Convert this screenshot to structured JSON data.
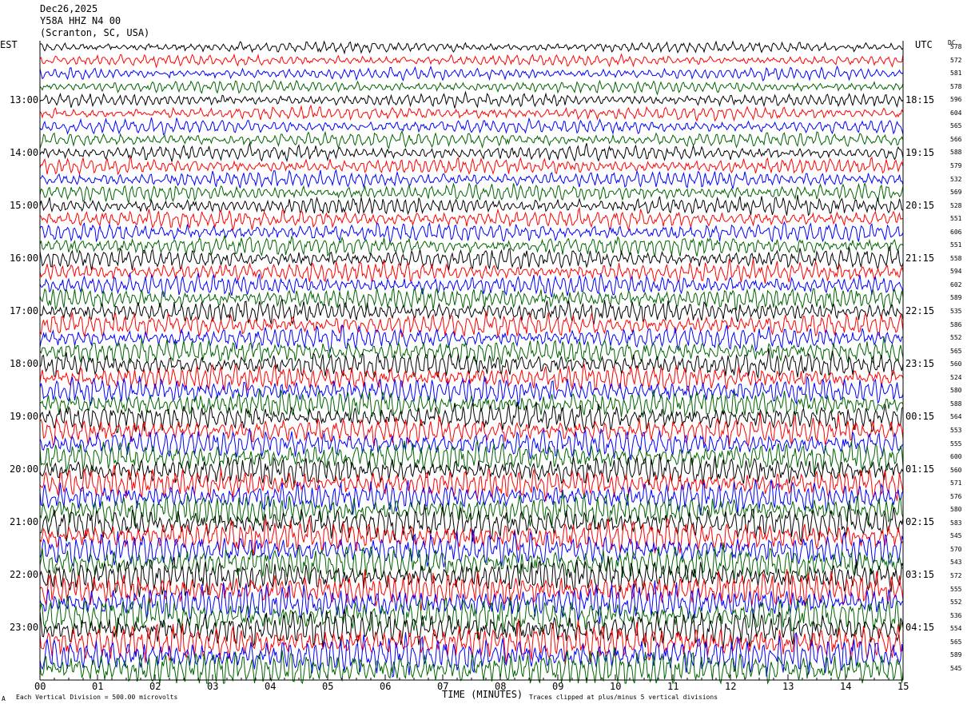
{
  "header": {
    "date": "Dec26,2025",
    "station": "Y58A HHZ N4 00",
    "location": "(Scranton, SC, USA)"
  },
  "axis_labels": {
    "left_tz": "EST",
    "right_tz": "UTC",
    "dc_label": "DC",
    "x_title": "TIME (MINUTES)"
  },
  "footer": {
    "scale_note": "Each Vertical Division =  500.00 microvolts",
    "clip_note": "Traces clipped at plus/minus 5 vertical divisions",
    "corner_mark": "A"
  },
  "trace_colors": [
    "#000000",
    "#ff0000",
    "#0000ff",
    "#006400"
  ],
  "chart_data": {
    "type": "line",
    "title": "Dec26,2025 Y58A HHZ N4 00 (Scranton, SC, USA)",
    "xlabel": "TIME (MINUTES)",
    "xlim": [
      0,
      15
    ],
    "x_ticks": [
      "00",
      "01",
      "02",
      "03",
      "04",
      "05",
      "06",
      "07",
      "08",
      "09",
      "10",
      "11",
      "12",
      "13",
      "14",
      "15"
    ],
    "left_hour_labels": [
      "13:00",
      "14:00",
      "15:00",
      "16:00",
      "17:00",
      "18:00",
      "19:00",
      "20:00",
      "21:00",
      "22:00",
      "23:00"
    ],
    "right_hour_labels": [
      "18:15",
      "19:15",
      "20:15",
      "21:15",
      "22:15",
      "23:15",
      "00:15",
      "01:15",
      "02:15",
      "03:15",
      "04:15"
    ],
    "dc_offsets": [
      578,
      572,
      581,
      578,
      596,
      604,
      565,
      566,
      588,
      579,
      532,
      569,
      528,
      551,
      606,
      551,
      558,
      594,
      602,
      589,
      535,
      586,
      552,
      565,
      560,
      524,
      580,
      588,
      564,
      553,
      555,
      600,
      560,
      571,
      576,
      580,
      583,
      545,
      570,
      543,
      572,
      555,
      552,
      536,
      554,
      565,
      589,
      545
    ],
    "traces_per_hour": 4,
    "minutes_per_trace": 15
  }
}
